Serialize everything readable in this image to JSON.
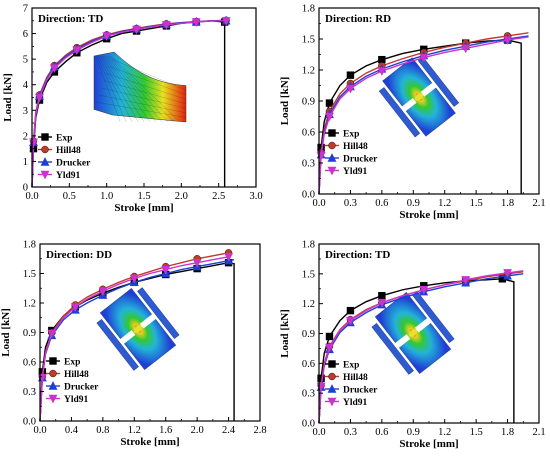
{
  "chart_data": [
    {
      "type": "line",
      "title": "Direction: TD",
      "xlabel": "Stroke [mm]",
      "ylabel": "Load [kN]",
      "xlim": [
        0,
        3.0
      ],
      "ylim": [
        0,
        7
      ],
      "xticks": [
        "0.0",
        "0.5",
        "1.0",
        "1.5",
        "2.0",
        "2.5",
        "3.0"
      ],
      "yticks": [
        "0",
        "1",
        "2",
        "3",
        "4",
        "5",
        "6",
        "7"
      ],
      "legend_position": "bottom-left",
      "series": [
        {
          "name": "Exp",
          "color": "#000000",
          "marker": "square",
          "x": [
            0.0,
            0.02,
            0.05,
            0.1,
            0.2,
            0.3,
            0.45,
            0.6,
            0.8,
            1.0,
            1.2,
            1.4,
            1.6,
            1.8,
            2.0,
            2.2,
            2.4,
            2.58,
            2.58
          ],
          "y": [
            0.0,
            1.5,
            2.7,
            3.4,
            4.1,
            4.5,
            4.9,
            5.25,
            5.55,
            5.8,
            6.0,
            6.1,
            6.2,
            6.3,
            6.4,
            6.45,
            6.5,
            6.45,
            0.0
          ]
        },
        {
          "name": "Hill48",
          "color": "#c0392b",
          "marker": "circle",
          "x": [
            0.0,
            0.02,
            0.05,
            0.1,
            0.2,
            0.3,
            0.45,
            0.6,
            0.8,
            1.0,
            1.2,
            1.4,
            1.6,
            1.8,
            2.0,
            2.2,
            2.4,
            2.6
          ],
          "y": [
            0.0,
            1.8,
            2.9,
            3.6,
            4.3,
            4.75,
            5.15,
            5.45,
            5.75,
            5.95,
            6.1,
            6.2,
            6.3,
            6.38,
            6.43,
            6.47,
            6.5,
            6.52
          ]
        },
        {
          "name": "Drucker",
          "color": "#1f3fd6",
          "marker": "triangle-up",
          "x": [
            0.0,
            0.02,
            0.05,
            0.1,
            0.2,
            0.3,
            0.45,
            0.6,
            0.8,
            1.0,
            1.2,
            1.4,
            1.6,
            1.8,
            2.0,
            2.2,
            2.4,
            2.6
          ],
          "y": [
            0.0,
            1.75,
            2.85,
            3.55,
            4.25,
            4.7,
            5.1,
            5.4,
            5.7,
            5.92,
            6.08,
            6.18,
            6.28,
            6.36,
            6.42,
            6.46,
            6.5,
            6.5
          ]
        },
        {
          "name": "Yld91",
          "color": "#cc33cc",
          "marker": "triangle-down",
          "x": [
            0.0,
            0.02,
            0.05,
            0.1,
            0.2,
            0.3,
            0.45,
            0.6,
            0.8,
            1.0,
            1.2,
            1.4,
            1.6,
            1.8,
            2.0,
            2.2,
            2.4,
            2.6
          ],
          "y": [
            0.0,
            1.75,
            2.8,
            3.5,
            4.2,
            4.65,
            5.05,
            5.35,
            5.65,
            5.9,
            6.05,
            6.16,
            6.26,
            6.34,
            6.4,
            6.45,
            6.49,
            6.5
          ]
        }
      ]
    },
    {
      "type": "line",
      "title": "Direction: RD",
      "xlabel": "Stroke [mm]",
      "ylabel": "Load [kN]",
      "xlim": [
        0,
        2.1
      ],
      "ylim": [
        0,
        1.8
      ],
      "xticks": [
        "0.0",
        "0.3",
        "0.6",
        "0.9",
        "1.2",
        "1.5",
        "1.8",
        "2.1"
      ],
      "yticks": [
        "0.0",
        "0.3",
        "0.6",
        "0.9",
        "1.2",
        "1.5",
        "1.8"
      ],
      "legend_position": "bottom-left",
      "series": [
        {
          "name": "Exp",
          "color": "#000000",
          "marker": "square",
          "x": [
            0.0,
            0.02,
            0.05,
            0.1,
            0.2,
            0.3,
            0.45,
            0.6,
            0.8,
            1.0,
            1.2,
            1.4,
            1.6,
            1.8,
            1.93,
            1.93
          ],
          "y": [
            0.0,
            0.45,
            0.7,
            0.88,
            1.05,
            1.15,
            1.24,
            1.3,
            1.36,
            1.4,
            1.43,
            1.46,
            1.48,
            1.49,
            1.46,
            0.0
          ]
        },
        {
          "name": "Hill48",
          "color": "#c0392b",
          "marker": "circle",
          "x": [
            0.0,
            0.02,
            0.05,
            0.1,
            0.2,
            0.3,
            0.45,
            0.6,
            0.8,
            1.0,
            1.2,
            1.4,
            1.6,
            1.8,
            2.0
          ],
          "y": [
            0.0,
            0.4,
            0.63,
            0.8,
            0.97,
            1.07,
            1.17,
            1.24,
            1.31,
            1.37,
            1.42,
            1.46,
            1.5,
            1.53,
            1.56
          ]
        },
        {
          "name": "Drucker",
          "color": "#1f3fd6",
          "marker": "triangle-up",
          "x": [
            0.0,
            0.02,
            0.05,
            0.1,
            0.2,
            0.3,
            0.45,
            0.6,
            0.8,
            1.0,
            1.2,
            1.4,
            1.6,
            1.8,
            2.0
          ],
          "y": [
            0.0,
            0.38,
            0.6,
            0.77,
            0.94,
            1.04,
            1.14,
            1.21,
            1.28,
            1.34,
            1.39,
            1.43,
            1.47,
            1.5,
            1.53
          ]
        },
        {
          "name": "Yld91",
          "color": "#cc33cc",
          "marker": "triangle-down",
          "x": [
            0.0,
            0.02,
            0.05,
            0.1,
            0.2,
            0.3,
            0.45,
            0.6,
            0.8,
            1.0,
            1.2,
            1.4,
            1.6,
            1.8,
            2.0
          ],
          "y": [
            0.0,
            0.37,
            0.58,
            0.75,
            0.92,
            1.02,
            1.12,
            1.19,
            1.26,
            1.32,
            1.37,
            1.41,
            1.45,
            1.49,
            1.52
          ]
        }
      ]
    },
    {
      "type": "line",
      "title": "Direction: DD",
      "xlabel": "Stroke [mm]",
      "ylabel": "Load [kN]",
      "xlim": [
        0,
        2.8
      ],
      "ylim": [
        0,
        1.8
      ],
      "xticks": [
        "0.0",
        "0.4",
        "0.8",
        "1.2",
        "1.6",
        "2.0",
        "2.4",
        "2.8"
      ],
      "yticks": [
        "0.0",
        "0.3",
        "0.6",
        "0.9",
        "1.2",
        "1.5",
        "1.8"
      ],
      "legend_position": "bottom-left",
      "series": [
        {
          "name": "Exp",
          "color": "#000000",
          "marker": "square",
          "x": [
            0.0,
            0.03,
            0.07,
            0.15,
            0.3,
            0.45,
            0.6,
            0.8,
            1.0,
            1.2,
            1.4,
            1.6,
            1.8,
            2.0,
            2.2,
            2.4,
            2.47,
            2.47
          ],
          "y": [
            0.0,
            0.5,
            0.75,
            0.92,
            1.07,
            1.16,
            1.23,
            1.3,
            1.36,
            1.41,
            1.45,
            1.49,
            1.52,
            1.55,
            1.58,
            1.61,
            1.6,
            0.0
          ]
        },
        {
          "name": "Hill48",
          "color": "#c0392b",
          "marker": "circle",
          "x": [
            0.0,
            0.03,
            0.07,
            0.15,
            0.3,
            0.45,
            0.6,
            0.8,
            1.0,
            1.2,
            1.4,
            1.6,
            1.8,
            2.0,
            2.2,
            2.4
          ],
          "y": [
            0.0,
            0.45,
            0.7,
            0.9,
            1.07,
            1.18,
            1.26,
            1.34,
            1.41,
            1.47,
            1.52,
            1.57,
            1.61,
            1.65,
            1.68,
            1.71
          ]
        },
        {
          "name": "Drucker",
          "color": "#1f3fd6",
          "marker": "triangle-up",
          "x": [
            0.0,
            0.03,
            0.07,
            0.15,
            0.3,
            0.45,
            0.6,
            0.8,
            1.0,
            1.2,
            1.4,
            1.6,
            1.8,
            2.0,
            2.2,
            2.4,
            2.47
          ],
          "y": [
            0.0,
            0.44,
            0.68,
            0.87,
            1.03,
            1.13,
            1.2,
            1.28,
            1.35,
            1.41,
            1.46,
            1.5,
            1.54,
            1.57,
            1.6,
            1.63,
            1.64
          ]
        },
        {
          "name": "Yld91",
          "color": "#cc33cc",
          "marker": "triangle-down",
          "x": [
            0.0,
            0.03,
            0.07,
            0.15,
            0.3,
            0.45,
            0.6,
            0.8,
            1.0,
            1.2,
            1.4,
            1.6,
            1.8,
            2.0,
            2.2,
            2.4
          ],
          "y": [
            0.0,
            0.44,
            0.69,
            0.89,
            1.05,
            1.16,
            1.24,
            1.32,
            1.39,
            1.45,
            1.5,
            1.54,
            1.58,
            1.61,
            1.64,
            1.67
          ]
        }
      ]
    },
    {
      "type": "line",
      "title": "Direction: TD",
      "xlabel": "Stroke [mm]",
      "ylabel": "Load [kN]",
      "xlim": [
        0,
        2.1
      ],
      "ylim": [
        0,
        1.8
      ],
      "xticks": [
        "0.0",
        "0.3",
        "0.6",
        "0.9",
        "1.2",
        "1.5",
        "1.8",
        "2.1"
      ],
      "yticks": [
        "0.0",
        "0.3",
        "0.6",
        "0.9",
        "1.2",
        "1.5",
        "1.8"
      ],
      "legend_position": "bottom-left",
      "series": [
        {
          "name": "Exp",
          "color": "#000000",
          "marker": "square",
          "x": [
            0.0,
            0.02,
            0.05,
            0.1,
            0.2,
            0.3,
            0.45,
            0.6,
            0.8,
            1.0,
            1.2,
            1.4,
            1.6,
            1.75,
            1.86,
            1.86
          ],
          "y": [
            0.0,
            0.45,
            0.7,
            0.87,
            1.03,
            1.13,
            1.22,
            1.28,
            1.34,
            1.38,
            1.41,
            1.43,
            1.44,
            1.45,
            1.42,
            0.0
          ]
        },
        {
          "name": "Hill48",
          "color": "#c0392b",
          "marker": "circle",
          "x": [
            0.0,
            0.02,
            0.05,
            0.1,
            0.2,
            0.3,
            0.45,
            0.6,
            0.8,
            1.0,
            1.2,
            1.4,
            1.6,
            1.8,
            1.95
          ],
          "y": [
            0.0,
            0.38,
            0.6,
            0.77,
            0.94,
            1.04,
            1.14,
            1.21,
            1.28,
            1.34,
            1.39,
            1.43,
            1.47,
            1.5,
            1.52
          ]
        },
        {
          "name": "Drucker",
          "color": "#1f3fd6",
          "marker": "triangle-up",
          "x": [
            0.0,
            0.02,
            0.05,
            0.1,
            0.2,
            0.3,
            0.45,
            0.6,
            0.8,
            1.0,
            1.2,
            1.4,
            1.6,
            1.8,
            1.95
          ],
          "y": [
            0.0,
            0.36,
            0.57,
            0.74,
            0.91,
            1.01,
            1.11,
            1.19,
            1.26,
            1.32,
            1.37,
            1.41,
            1.45,
            1.48,
            1.5
          ]
        },
        {
          "name": "Yld91",
          "color": "#cc33cc",
          "marker": "triangle-down",
          "x": [
            0.0,
            0.02,
            0.05,
            0.1,
            0.2,
            0.3,
            0.45,
            0.6,
            0.8,
            1.0,
            1.2,
            1.4,
            1.6,
            1.8,
            1.95
          ],
          "y": [
            0.0,
            0.37,
            0.58,
            0.76,
            0.93,
            1.03,
            1.13,
            1.21,
            1.28,
            1.34,
            1.39,
            1.44,
            1.48,
            1.51,
            1.53
          ]
        }
      ]
    }
  ]
}
